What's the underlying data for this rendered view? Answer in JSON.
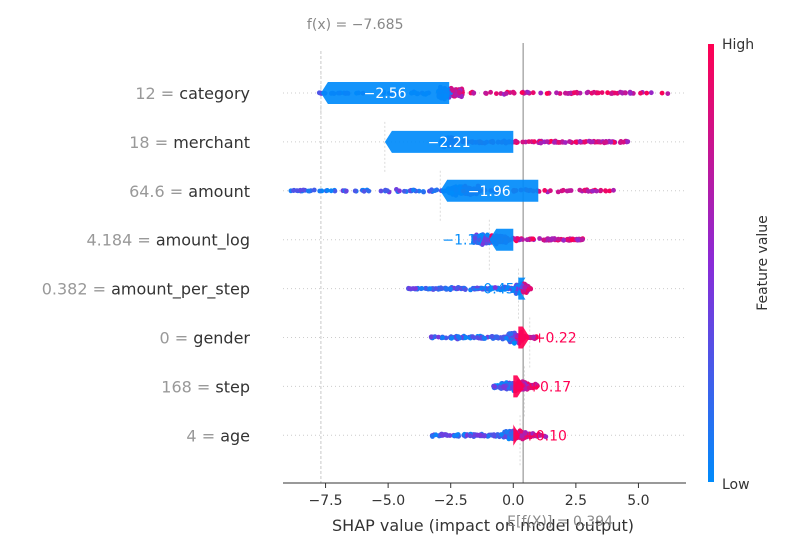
{
  "chart_data": {
    "type": "scatter",
    "subtype": "shap-decision-beeswarm",
    "title": "",
    "xlabel": "SHAP value (impact on model output)",
    "xlim": [
      -9.2,
      6.9
    ],
    "xticks": [
      {
        "value": -7.5,
        "label": "−7.5"
      },
      {
        "value": -5.0,
        "label": "−5.0"
      },
      {
        "value": -2.5,
        "label": "−2.5"
      },
      {
        "value": 0.0,
        "label": "0.0"
      },
      {
        "value": 2.5,
        "label": "2.5"
      },
      {
        "value": 5.0,
        "label": "5.0"
      }
    ],
    "fx_label": "f(x) = −7.685",
    "fx_value": -7.685,
    "efx_label": "E[f(X)] = 0.394",
    "base_value": 0.394,
    "colorbar": {
      "title": "Feature value",
      "high_label": "High",
      "low_label": "Low",
      "high_color": "#ff0052",
      "low_color": "#008bfb"
    },
    "features": [
      {
        "value_text": "12",
        "name": "category",
        "shap": -2.56,
        "shap_label": "−2.56",
        "start": -2.56,
        "end": -7.685,
        "spread": [
          -7.8,
          6.3
        ],
        "dense": [
          -3.0,
          -2.0
        ]
      },
      {
        "value_text": "18",
        "name": "merchant",
        "shap": -2.21,
        "shap_label": "−2.21",
        "start": 0.0,
        "end": -5.13,
        "spread": [
          -2.8,
          4.6
        ],
        "dense": [
          -2.9,
          -2.3
        ]
      },
      {
        "value_text": "64.6",
        "name": "amount",
        "shap": -1.96,
        "shap_label": "−1.96",
        "start": 1.0,
        "end": -2.92,
        "spread": [
          -8.9,
          4.5
        ],
        "dense": [
          -2.6,
          -1.4
        ]
      },
      {
        "value_text": "4.184",
        "name": "amount_log",
        "shap": -1.17,
        "shap_label": "−1.17",
        "start": 0.0,
        "end": -0.96,
        "spread": [
          -1.4,
          2.8
        ],
        "dense": [
          -1.6,
          -0.3
        ]
      },
      {
        "value_text": "0.382",
        "name": "amount_per_step",
        "shap": -0.45,
        "shap_label": "−0.45",
        "start": 0.2,
        "end": 0.21,
        "spread": [
          -4.2,
          0.7
        ],
        "dense": [
          0.1,
          0.6
        ]
      },
      {
        "value_text": "0",
        "name": "gender",
        "shap": 0.22,
        "shap_label": "+0.22",
        "start": 0.2,
        "end": 0.66,
        "spread": [
          -3.3,
          1.0
        ],
        "dense": [
          -0.2,
          0.4
        ]
      },
      {
        "value_text": "168",
        "name": "step",
        "shap": 0.17,
        "shap_label": "+0.17",
        "start": 0.0,
        "end": 0.44,
        "spread": [
          -0.8,
          1.0
        ],
        "dense": [
          -0.5,
          0.6
        ]
      },
      {
        "value_text": "4",
        "name": "age",
        "shap": 0.1,
        "shap_label": "+0.10",
        "start": 0.0,
        "end": 0.27,
        "spread": [
          -3.3,
          1.3
        ],
        "dense": [
          -0.4,
          0.5
        ]
      }
    ]
  }
}
